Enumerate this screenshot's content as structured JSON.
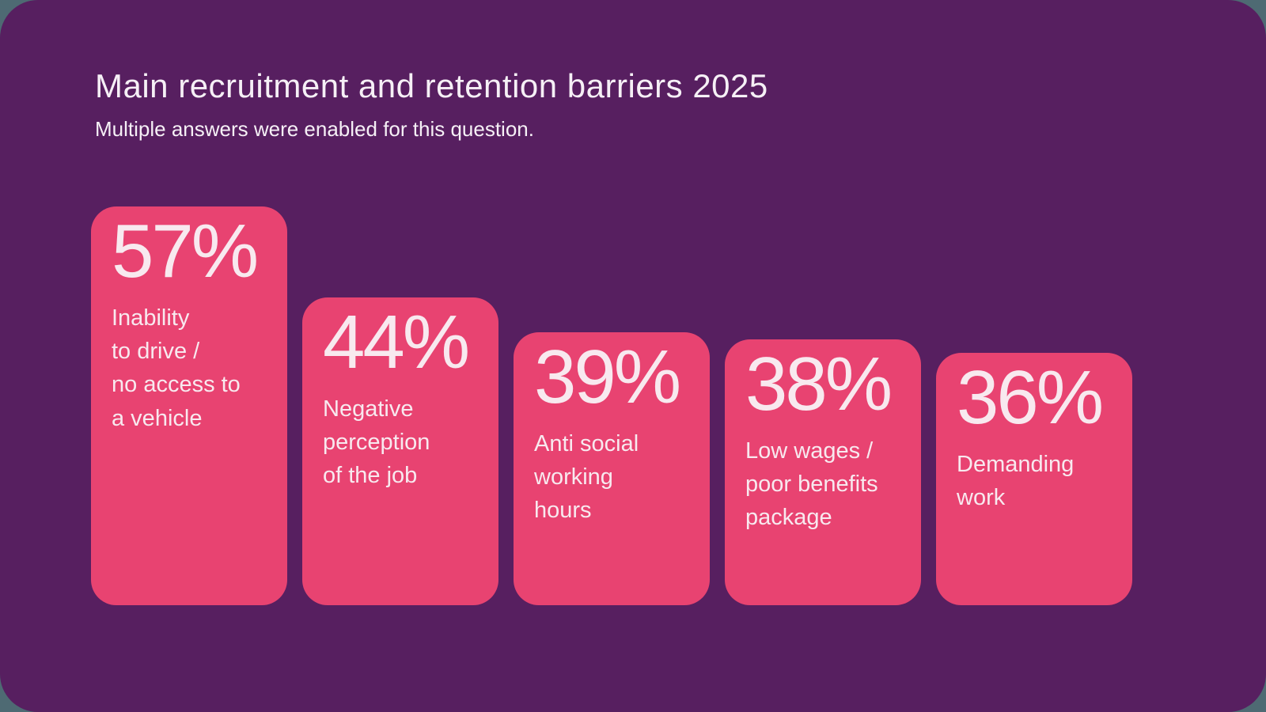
{
  "page": {
    "title": "Main recruitment and retention barriers 2025",
    "subtitle": "Multiple answers were enabled for this question."
  },
  "colors": {
    "canvas_background": "#4E6A73",
    "panel_background": "#571F60",
    "bar_fill": "#E84371",
    "bar_text": "#F8E9EF",
    "title_text": "#F6F0F6"
  },
  "chart_data": {
    "type": "bar",
    "orientation": "vertical",
    "title": "Main recruitment and retention barriers 2025",
    "subtitle": "Multiple answers were enabled for this question.",
    "unit": "%",
    "axes": "none",
    "grid": false,
    "legend": false,
    "value_labels_position": "inside-top",
    "categories": [
      "Inability to drive / no access to a vehicle",
      "Negative perception of the job",
      "Anti social working hours",
      "Low wages / poor benefits package",
      "Demanding work"
    ],
    "values": [
      57,
      44,
      39,
      38,
      36
    ],
    "bars": [
      {
        "value": 57,
        "value_label": "57%",
        "category": "Inability to drive / no access to a vehicle",
        "label_lines": "Inability\nto drive /\nno access to\na vehicle"
      },
      {
        "value": 44,
        "value_label": "44%",
        "category": "Negative perception of the job",
        "label_lines": "Negative\nperception\nof the job"
      },
      {
        "value": 39,
        "value_label": "39%",
        "category": "Anti social working hours",
        "label_lines": "Anti social\nworking\nhours"
      },
      {
        "value": 38,
        "value_label": "38%",
        "category": "Low wages / poor benefits package",
        "label_lines": "Low wages /\npoor benefits\npackage"
      },
      {
        "value": 36,
        "value_label": "36%",
        "category": "Demanding work",
        "label_lines": "Demanding\nwork"
      }
    ]
  }
}
